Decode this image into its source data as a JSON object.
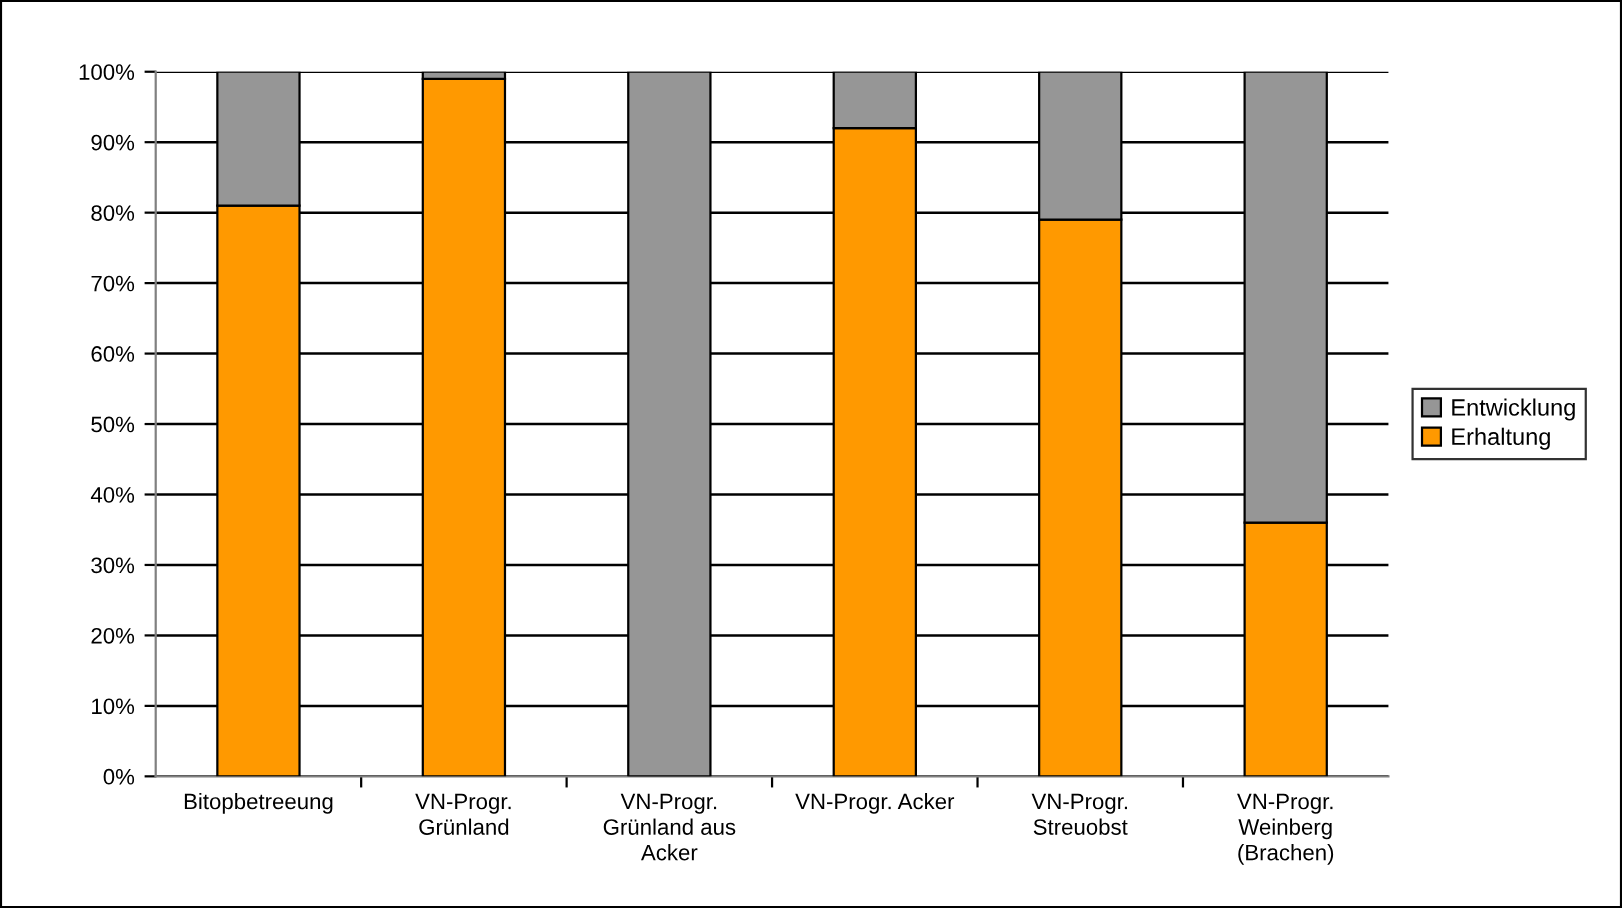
{
  "chart_data": {
    "type": "bar",
    "stacked": true,
    "categories": [
      "Bitopbetreeung",
      "VN-Progr.\nGrünland",
      "VN-Progr.\nGrünland aus\nAcker",
      "VN-Progr. Acker",
      "VN-Progr.\nStreuobst",
      "VN-Progr.\nWeinberg\n(Brachen)"
    ],
    "series": [
      {
        "name": "Erhaltung",
        "color": "#ff9900",
        "values": [
          81,
          99,
          0,
          92,
          79,
          36
        ]
      },
      {
        "name": "Entwicklung",
        "color": "#969696",
        "values": [
          19,
          1,
          100,
          8,
          21,
          64
        ]
      }
    ],
    "ylim": [
      0,
      100
    ],
    "yticks": [
      {
        "value": 0,
        "label": "0%"
      },
      {
        "value": 10,
        "label": "10%"
      },
      {
        "value": 20,
        "label": "20%"
      },
      {
        "value": 30,
        "label": "30%"
      },
      {
        "value": 40,
        "label": "40%"
      },
      {
        "value": 50,
        "label": "50%"
      },
      {
        "value": 60,
        "label": "60%"
      },
      {
        "value": 70,
        "label": "70%"
      },
      {
        "value": 80,
        "label": "80%"
      },
      {
        "value": 90,
        "label": "90%"
      },
      {
        "value": 100,
        "label": "100%"
      }
    ],
    "grid": "y",
    "legend": "right"
  }
}
